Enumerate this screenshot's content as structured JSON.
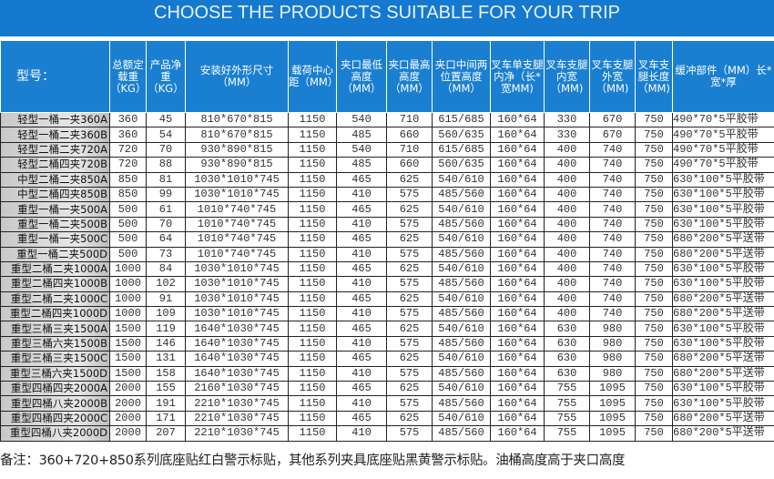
{
  "banner": {
    "title": "CHOOSE THE PRODUCTS SUITABLE FOR YOUR TRIP"
  },
  "colors": {
    "header": "#1a7fd1",
    "banner": "#1579cf"
  },
  "table": {
    "headers": [
      "型号：",
      "总额定载重（KG）",
      "产品净重（KG）",
      "安装好外形尺寸（MM）",
      "载荷中心距（MM）",
      "夹口最低高度（MM）",
      "夹口最高高度（MM）",
      "夹口中间两位置高度（MM）",
      "叉车单支腿内净（长*宽MM)",
      "叉车支腿内宽（MM)",
      "叉车支腿外宽（MM)",
      "叉车支腿长度（MM)",
      "缓冲部件（MM）长*宽*厚"
    ],
    "rows": [
      [
        "轻型一桶一夹360A",
        "360",
        "45",
        "810*670*815",
        "1150",
        "540",
        "710",
        "615/685",
        "160*64",
        "330",
        "670",
        "750",
        "490*70*5平胶带"
      ],
      [
        "轻型一桶二夹360B",
        "360",
        "54",
        "810*670*815",
        "1150",
        "485",
        "660",
        "560/635",
        "160*64",
        "330",
        "670",
        "750",
        "490*70*5平胶带"
      ],
      [
        "轻型二桶二夹720A",
        "720",
        "70",
        "930*890*815",
        "1150",
        "540",
        "710",
        "615/685",
        "160*64",
        "400",
        "740",
        "750",
        "490*70*5平胶带"
      ],
      [
        "轻型二桶四夹720B",
        "720",
        "88",
        "930*890*815",
        "1150",
        "485",
        "660",
        "560/635",
        "160*64",
        "400",
        "740",
        "750",
        "490*70*5平胶带"
      ],
      [
        "中型二桶二夹850A",
        "850",
        "81",
        "1030*1010*745",
        "1150",
        "465",
        "625",
        "540/610",
        "160*64",
        "400",
        "740",
        "750",
        "630*100*5平胶带"
      ],
      [
        "中型二桶四夹850B",
        "850",
        "99",
        "1030*1010*745",
        "1150",
        "410",
        "575",
        "485/560",
        "160*64",
        "400",
        "740",
        "750",
        "630*100*5平胶带"
      ],
      [
        "重型一桶一夹500A",
        "500",
        "61",
        "1010*740*745",
        "1150",
        "465",
        "625",
        "540/610",
        "160*64",
        "400",
        "740",
        "750",
        "630*100*5平胶带"
      ],
      [
        "重型一桶二夹500B",
        "500",
        "70",
        "1010*740*745",
        "1150",
        "410",
        "575",
        "485/560",
        "160*64",
        "400",
        "740",
        "750",
        "630*100*5平胶带"
      ],
      [
        "重型一桶一夹500C",
        "500",
        "64",
        "1010*740*745",
        "1150",
        "465",
        "625",
        "540/610",
        "160*64",
        "400",
        "740",
        "750",
        "680*200*5平送带"
      ],
      [
        "重型一桶二夹500D",
        "500",
        "73",
        "1010*740*745",
        "1150",
        "410",
        "575",
        "485/560",
        "160*64",
        "400",
        "740",
        "750",
        "680*200*5平送带"
      ],
      [
        "重型二桶二夹1000A",
        "1000",
        "84",
        "1030*1010*745",
        "1150",
        "465",
        "625",
        "540/610",
        "160*64",
        "400",
        "740",
        "750",
        "630*100*5平胶带"
      ],
      [
        "重型二桶四夹1000B",
        "1000",
        "102",
        "1030*1010*745",
        "1150",
        "410",
        "575",
        "485/560",
        "160*64",
        "400",
        "740",
        "750",
        "630*100*5平胶带"
      ],
      [
        "重型二桶二夹1000C",
        "1000",
        "91",
        "1030*1010*745",
        "1150",
        "465",
        "625",
        "540/610",
        "160*64",
        "400",
        "740",
        "750",
        "680*200*5平送带"
      ],
      [
        "重型二桶四夹1000D",
        "1000",
        "109",
        "1030*1010*745",
        "1150",
        "410",
        "575",
        "485/560",
        "160*64",
        "400",
        "740",
        "750",
        "680*200*5平送带"
      ],
      [
        "重型三桶三夹1500A",
        "1500",
        "119",
        "1640*1030*745",
        "1150",
        "465",
        "625",
        "540/610",
        "160*64",
        "630",
        "980",
        "750",
        "630*100*5平胶带"
      ],
      [
        "重型三桶六夹1500B",
        "1500",
        "146",
        "1640*1030*745",
        "1150",
        "410",
        "575",
        "485/560",
        "160*64",
        "630",
        "980",
        "750",
        "630*100*5平胶带"
      ],
      [
        "重型三桶三夹1500C",
        "1500",
        "131",
        "1640*1030*745",
        "1150",
        "465",
        "625",
        "540/610",
        "160*64",
        "630",
        "980",
        "750",
        "680*200*5平送带"
      ],
      [
        "重型三桶六夹1500D",
        "1500",
        "158",
        "1640*1030*745",
        "1150",
        "410",
        "575",
        "485/560",
        "160*64",
        "630",
        "980",
        "750",
        "680*200*5平送带"
      ],
      [
        "重型四桶四夹2000A",
        "2000",
        "155",
        "2160*1030*745",
        "1150",
        "465",
        "625",
        "540/610",
        "160*64",
        "755",
        "1095",
        "750",
        "630*100*5平胶带"
      ],
      [
        "重型四桶八夹2000B",
        "2000",
        "191",
        "2210*1030*745",
        "1150",
        "410",
        "575",
        "485/560",
        "160*64",
        "755",
        "1095",
        "750",
        "630*100*5平胶带"
      ],
      [
        "重型四桶四夹2000C",
        "2000",
        "171",
        "2210*1030*745",
        "1150",
        "465",
        "625",
        "540/610",
        "160*64",
        "755",
        "1095",
        "750",
        "680*200*5平送带"
      ],
      [
        "重型四桶八夹2000D",
        "2000",
        "207",
        "2210*1030*745",
        "1150",
        "410",
        "575",
        "485/560",
        "160*64",
        "755",
        "1095",
        "750",
        "680*200*5平送带"
      ]
    ]
  },
  "note": "备注：360+720+850系列底座贴红白警示标贴，其他系列夹具底座贴黑黄警示标贴。油桶高度高于夹口高度"
}
